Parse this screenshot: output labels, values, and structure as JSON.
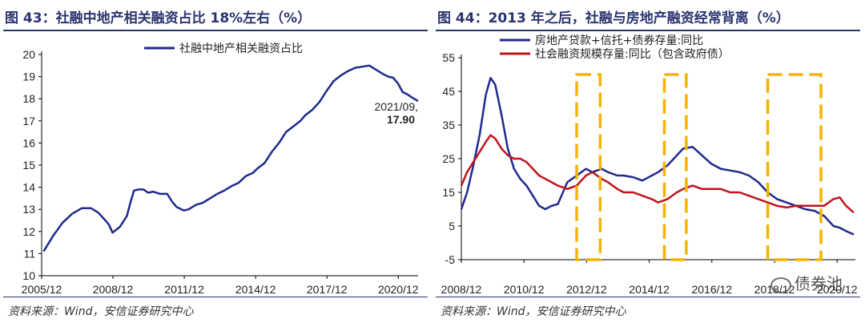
{
  "left": {
    "title": "图 43：社融中地产相关融资占比 18%左右（%）",
    "source": "资料来源：Wind，安信证券研究中心"
  },
  "right": {
    "title": "图 44：2013 年之后，社融与房地产融资经常背离（%）",
    "source": "资料来源：Wind，安信证券研究中心",
    "watermark": "债券池"
  },
  "colors": {
    "navy": "#1f2a8c",
    "red": "#c0141b",
    "box": "#f5b400",
    "axis": "#000000"
  },
  "chart_data": [
    {
      "type": "line",
      "title": "社融中地产相关融资占比",
      "ylim": [
        10,
        20
      ],
      "yticks": [
        10,
        11,
        12,
        13,
        14,
        15,
        16,
        17,
        18,
        19,
        20
      ],
      "xlim": [
        2005.917,
        2021.75
      ],
      "xticks": [
        "2005/12",
        "2008/12",
        "2011/12",
        "2014/12",
        "2017/12",
        "2020/12"
      ],
      "annotation": {
        "label": "2021/09,",
        "value": "17.90"
      },
      "series": [
        {
          "name": "社融中地产相关融资占比",
          "color": "#1f2a8c",
          "x": [
            2006.0,
            2006.4,
            2006.8,
            2007.2,
            2007.6,
            2008.0,
            2008.3,
            2008.6,
            2008.75,
            2008.9,
            2009.2,
            2009.5,
            2009.65,
            2009.8,
            2010.0,
            2010.2,
            2010.4,
            2010.6,
            2010.9,
            2011.2,
            2011.4,
            2011.6,
            2011.9,
            2012.1,
            2012.4,
            2012.7,
            2013.0,
            2013.3,
            2013.6,
            2013.9,
            2014.2,
            2014.5,
            2014.8,
            2015.0,
            2015.3,
            2015.6,
            2015.9,
            2016.2,
            2016.5,
            2016.8,
            2017.0,
            2017.3,
            2017.6,
            2017.9,
            2018.2,
            2018.5,
            2018.8,
            2019.1,
            2019.4,
            2019.7,
            2020.0,
            2020.3,
            2020.5,
            2020.7,
            2020.9,
            2021.1,
            2021.3,
            2021.5,
            2021.75
          ],
          "values": [
            11.1,
            11.8,
            12.4,
            12.8,
            13.05,
            13.05,
            12.85,
            12.5,
            12.3,
            11.95,
            12.2,
            12.7,
            13.3,
            13.85,
            13.9,
            13.9,
            13.75,
            13.8,
            13.7,
            13.7,
            13.35,
            13.1,
            12.95,
            13.0,
            13.2,
            13.3,
            13.5,
            13.7,
            13.85,
            14.05,
            14.2,
            14.5,
            14.65,
            14.85,
            15.1,
            15.6,
            16.0,
            16.5,
            16.75,
            17.0,
            17.25,
            17.5,
            17.85,
            18.35,
            18.8,
            19.05,
            19.25,
            19.4,
            19.45,
            19.5,
            19.3,
            19.1,
            19.0,
            18.95,
            18.7,
            18.3,
            18.2,
            18.05,
            17.9
          ]
        }
      ]
    },
    {
      "type": "line",
      "ylim": [
        -5,
        55
      ],
      "yticks": [
        -5,
        5,
        15,
        25,
        35,
        45,
        55
      ],
      "xlim": [
        2008.917,
        2021.5
      ],
      "xticks": [
        "2008/12",
        "2010/12",
        "2012/12",
        "2014/12",
        "2016/12",
        "2018/12",
        "2020/12"
      ],
      "highlight_ranges": [
        [
          2012.6,
          2013.35
        ],
        [
          2015.4,
          2016.1
        ],
        [
          2018.7,
          2020.4
        ]
      ],
      "series": [
        {
          "name": "房地产贷款+信托+债券存量:同比",
          "color": "#1f2a8c",
          "x": [
            2008.917,
            2009.1,
            2009.3,
            2009.5,
            2009.7,
            2009.85,
            2010.0,
            2010.2,
            2010.4,
            2010.6,
            2010.8,
            2011.0,
            2011.2,
            2011.4,
            2011.6,
            2011.8,
            2012.0,
            2012.3,
            2012.6,
            2012.9,
            2013.1,
            2013.4,
            2013.6,
            2013.9,
            2014.1,
            2014.4,
            2014.7,
            2015.0,
            2015.2,
            2015.5,
            2015.8,
            2016.0,
            2016.3,
            2016.6,
            2016.9,
            2017.2,
            2017.5,
            2017.8,
            2018.1,
            2018.4,
            2018.7,
            2019.0,
            2019.3,
            2019.6,
            2019.9,
            2020.2,
            2020.5,
            2020.8,
            2021.0,
            2021.2,
            2021.45
          ],
          "values": [
            10,
            15,
            23,
            32,
            44,
            49,
            47,
            38,
            28,
            22,
            19,
            17,
            14,
            11,
            10,
            11,
            11.5,
            18,
            20,
            22,
            21,
            22,
            21,
            20,
            20,
            19.5,
            18.5,
            20,
            21,
            23,
            26,
            28,
            28.5,
            26,
            23.5,
            22,
            21.5,
            21,
            20,
            18,
            15,
            13,
            12,
            11,
            10,
            9.5,
            8,
            5,
            4.5,
            3.5,
            2.5
          ]
        },
        {
          "name": "社会融资规模存量:同比（包含政府债）",
          "color": "#c0141b",
          "x": [
            2008.917,
            2009.1,
            2009.3,
            2009.5,
            2009.7,
            2009.85,
            2010.0,
            2010.2,
            2010.4,
            2010.6,
            2010.8,
            2011.0,
            2011.2,
            2011.4,
            2011.6,
            2011.8,
            2012.0,
            2012.3,
            2012.6,
            2012.9,
            2013.1,
            2013.4,
            2013.6,
            2013.9,
            2014.1,
            2014.4,
            2014.7,
            2015.0,
            2015.2,
            2015.5,
            2015.8,
            2016.0,
            2016.3,
            2016.6,
            2016.9,
            2017.2,
            2017.5,
            2017.8,
            2018.1,
            2018.4,
            2018.7,
            2019.0,
            2019.3,
            2019.6,
            2019.9,
            2020.2,
            2020.5,
            2020.8,
            2021.0,
            2021.2,
            2021.45
          ],
          "values": [
            17,
            21,
            24,
            27,
            30,
            32,
            31,
            28,
            26,
            25,
            25,
            24,
            22,
            20,
            19,
            18,
            17,
            16,
            17,
            20,
            21,
            19,
            18,
            16,
            15,
            15,
            14,
            13,
            12,
            13,
            15,
            16,
            17,
            16,
            16,
            16,
            15,
            15,
            14,
            13,
            12,
            11,
            10.5,
            11,
            11,
            11,
            11,
            13,
            13.5,
            11,
            9
          ]
        }
      ]
    }
  ]
}
